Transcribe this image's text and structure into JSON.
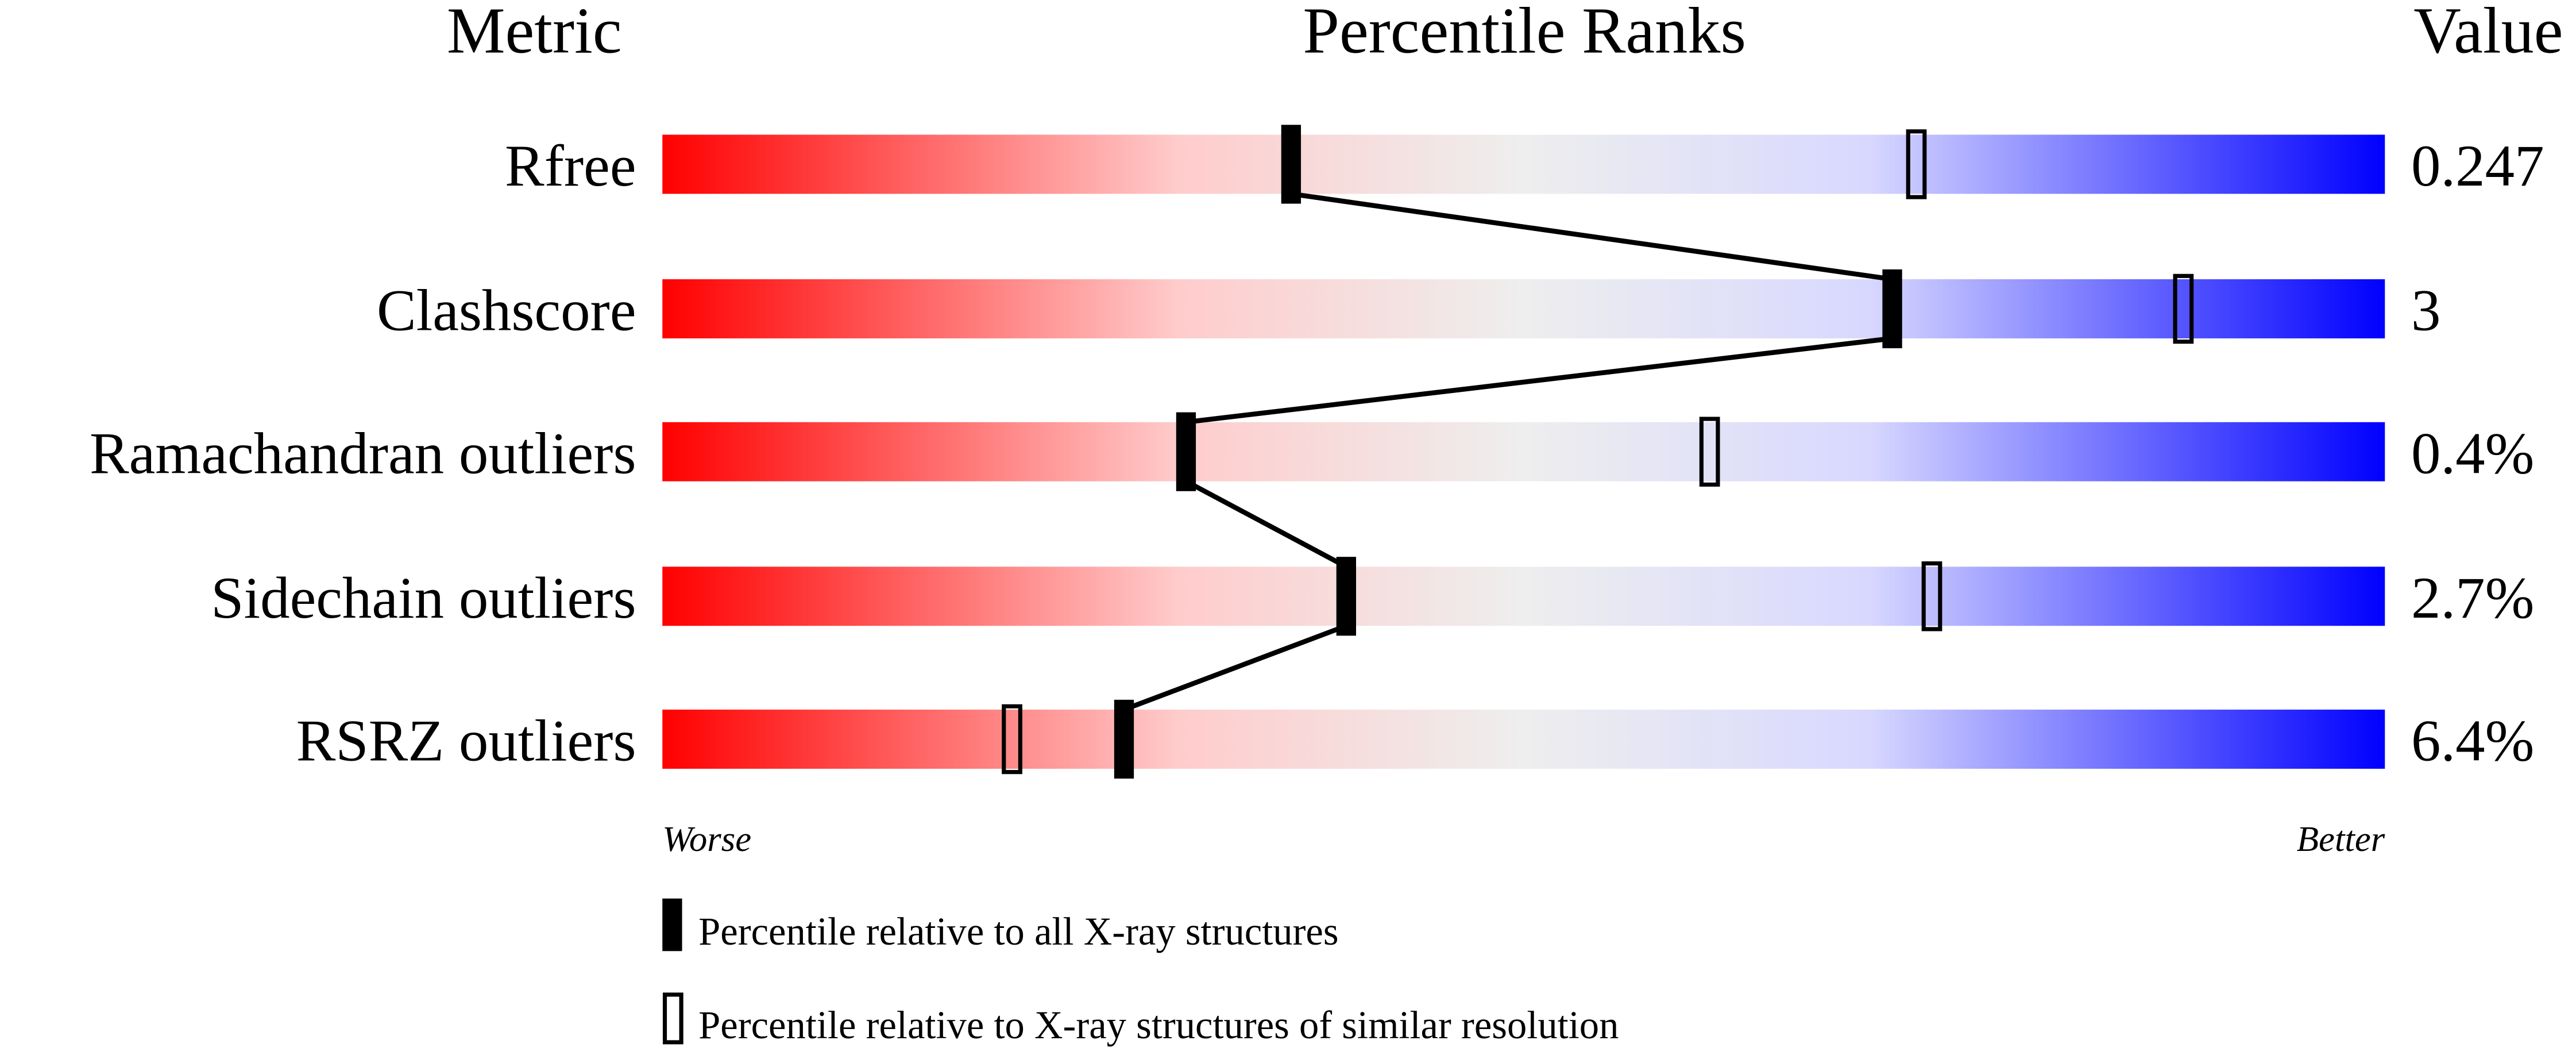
{
  "chart_data": {
    "type": "bar",
    "headers": {
      "metric": "Metric",
      "ranks": "Percentile Ranks",
      "value": "Value"
    },
    "xlim": [
      0,
      100
    ],
    "axis_labels": {
      "worse": "Worse",
      "better": "Better"
    },
    "gradient_colors": [
      "#ff0000",
      "#ffcccc",
      "#eeeeee",
      "#d8d8ff",
      "#0000ff"
    ],
    "metrics": [
      {
        "name": "Rfree",
        "value": "0.247",
        "percentile_all": 36.5,
        "percentile_similar": 72.8
      },
      {
        "name": "Clashscore",
        "value": "3",
        "percentile_all": 71.4,
        "percentile_similar": 88.3
      },
      {
        "name": "Ramachandran outliers",
        "value": "0.4%",
        "percentile_all": 30.4,
        "percentile_similar": 60.8
      },
      {
        "name": "Sidechain outliers",
        "value": "2.7%",
        "percentile_all": 39.7,
        "percentile_similar": 73.7
      },
      {
        "name": "RSRZ outliers",
        "value": "6.4%",
        "percentile_all": 26.8,
        "percentile_similar": 20.3
      }
    ],
    "legend": [
      {
        "marker": "filled",
        "label": "Percentile relative to all X-ray structures"
      },
      {
        "marker": "open",
        "label": "Percentile relative to X-ray structures of similar resolution"
      }
    ]
  }
}
